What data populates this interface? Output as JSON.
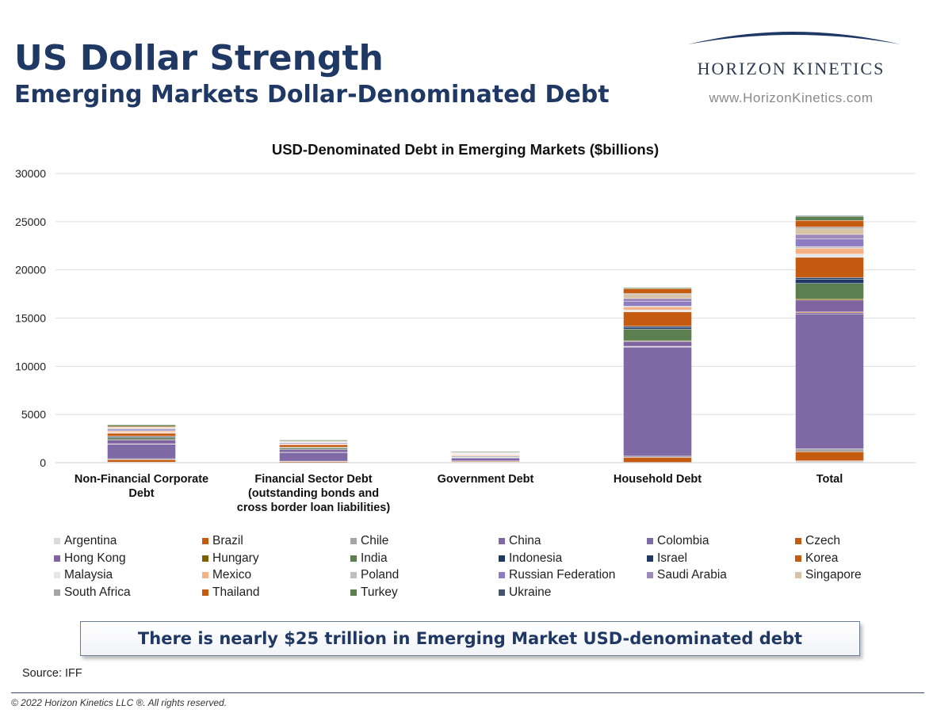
{
  "header": {
    "title": "US Dollar Strength",
    "subtitle": "Emerging Markets Dollar-Denominated Debt"
  },
  "logo": {
    "name": "HORIZON KINETICS",
    "url": "www.HorizonKinetics.com"
  },
  "callout": "There is nearly $25 trillion in Emerging Market USD-denominated debt",
  "source": "Source: IFF",
  "copyright": "© 2022 Horizon Kinetics LLC ®.  All rights reserved.",
  "chart_data": {
    "type": "bar",
    "stacked": true,
    "title": "USD-Denominated Debt in Emerging Markets ($billions)",
    "xlabel": "",
    "ylabel": "",
    "ylim": [
      0,
      30000
    ],
    "yticks": [
      0,
      5000,
      10000,
      15000,
      20000,
      25000,
      30000
    ],
    "grid": true,
    "legend_position": "bottom",
    "categories": [
      [
        "Non-Financial Corporate",
        "Debt"
      ],
      [
        "Financial Sector Debt",
        "(outstanding bonds and",
        "cross border loan liabilities)"
      ],
      [
        "Government Debt"
      ],
      [
        "Household Debt"
      ],
      [
        "Total"
      ]
    ],
    "series": [
      {
        "name": "Argentina",
        "color": "#d9d9d9",
        "values": [
          60,
          20,
          80,
          40,
          200
        ]
      },
      {
        "name": "Brazil",
        "color": "#c55a11",
        "values": [
          250,
          100,
          80,
          500,
          930
        ]
      },
      {
        "name": "Chile",
        "color": "#a6a6a6",
        "values": [
          100,
          40,
          30,
          140,
          310
        ]
      },
      {
        "name": "China",
        "color": "#7f6aa5",
        "values": [
          1500,
          900,
          300,
          11300,
          14000
        ]
      },
      {
        "name": "Colombia",
        "color": "#7f6aa5",
        "values": [
          30,
          10,
          20,
          60,
          120
        ]
      },
      {
        "name": "Czech",
        "color": "#c55a11",
        "values": [
          20,
          10,
          10,
          40,
          80
        ]
      },
      {
        "name": "Hong Kong",
        "color": "#8064a2",
        "values": [
          400,
          300,
          20,
          500,
          1220
        ]
      },
      {
        "name": "Hungary",
        "color": "#7f6000",
        "values": [
          30,
          20,
          20,
          70,
          140
        ]
      },
      {
        "name": "India",
        "color": "#5b7f4f",
        "values": [
          200,
          150,
          50,
          1200,
          1600
        ]
      },
      {
        "name": "Indonesia",
        "color": "#203864",
        "values": [
          120,
          40,
          60,
          200,
          420
        ]
      },
      {
        "name": "Israel",
        "color": "#203864",
        "values": [
          40,
          20,
          20,
          100,
          180
        ]
      },
      {
        "name": "Korea",
        "color": "#c55a11",
        "values": [
          300,
          250,
          50,
          1500,
          2100
        ]
      },
      {
        "name": "Malaysia",
        "color": "#e7e6e6",
        "values": [
          80,
          40,
          30,
          200,
          350
        ]
      },
      {
        "name": "Mexico",
        "color": "#f4b183",
        "values": [
          150,
          60,
          80,
          300,
          590
        ]
      },
      {
        "name": "Poland",
        "color": "#bfbfbf",
        "values": [
          40,
          20,
          30,
          100,
          190
        ]
      },
      {
        "name": "Russian Federation",
        "color": "#8e7cc3",
        "values": [
          150,
          100,
          40,
          500,
          790
        ]
      },
      {
        "name": "Saudi Arabia",
        "color": "#9e8ab8",
        "values": [
          60,
          40,
          60,
          300,
          460
        ]
      },
      {
        "name": "Singapore",
        "color": "#d9c3a5",
        "values": [
          100,
          60,
          20,
          400,
          580
        ]
      },
      {
        "name": "South Africa",
        "color": "#a5a5a5",
        "values": [
          40,
          20,
          30,
          100,
          190
        ]
      },
      {
        "name": "Thailand",
        "color": "#c55a11",
        "values": [
          100,
          50,
          20,
          500,
          670
        ]
      },
      {
        "name": "Turkey",
        "color": "#5b7f4f",
        "values": [
          150,
          100,
          80,
          100,
          430
        ]
      },
      {
        "name": "Ukraine",
        "color": "#44546a",
        "values": [
          20,
          10,
          20,
          20,
          70
        ]
      }
    ]
  }
}
